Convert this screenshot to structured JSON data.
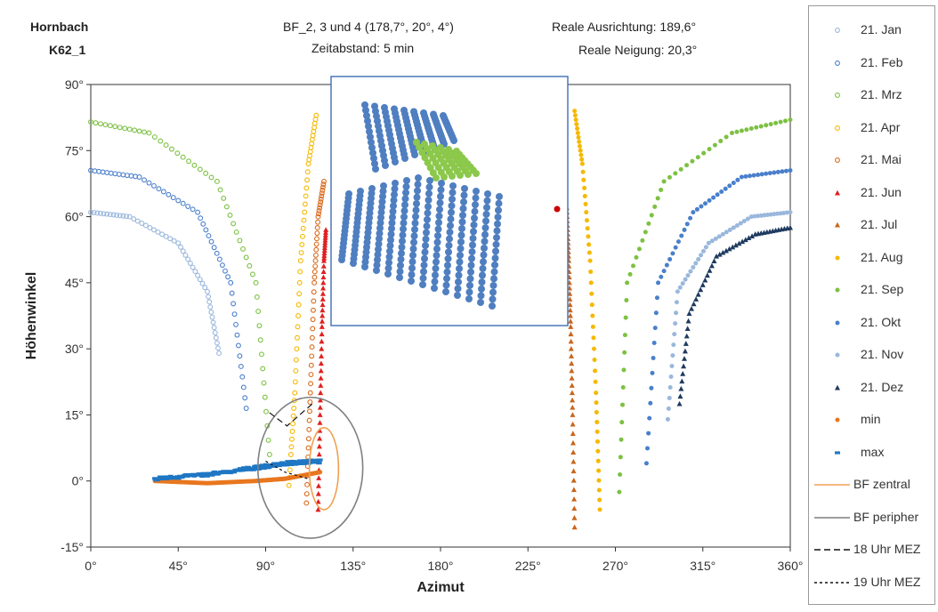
{
  "header": {
    "location": "Hornbach",
    "id": "K62_1",
    "bf_line": "BF_2, 3 und 4 (178,7°, 20°, 4°)",
    "interval_label": "Zeitabstand:",
    "interval_value": "5 min",
    "orientation_label": "Reale Ausrichtung:",
    "orientation_value": "189,6°",
    "tilt_label": "Reale Neigung:",
    "tilt_value": "20,3°"
  },
  "chart_data": {
    "type": "scatter",
    "title": "",
    "xlabel": "Azimut",
    "ylabel": "Höhenwinkel",
    "xlim": [
      0,
      360
    ],
    "ylim": [
      -15,
      90
    ],
    "x_ticks": [
      "0°",
      "45°",
      "90°",
      "135°",
      "180°",
      "225°",
      "270°",
      "315°",
      "360°"
    ],
    "y_ticks": [
      "-15°",
      "0°",
      "15°",
      "30°",
      "45°",
      "60°",
      "75°",
      "90°"
    ],
    "grid": "none",
    "legend": "right",
    "series": [
      {
        "name": "21. Jan",
        "color": "#9ab7dc",
        "marker": "open-circle",
        "x": [
          0,
          20,
          45,
          60,
          66
        ],
        "y": [
          61,
          60,
          54,
          43,
          29
        ]
      },
      {
        "name": "21. Feb",
        "color": "#4a7fcb",
        "marker": "open-circle",
        "x": [
          0,
          25,
          55,
          72,
          80
        ],
        "y": [
          70.5,
          69,
          61,
          45,
          16.5
        ]
      },
      {
        "name": "21. Mrz",
        "color": "#7cc142",
        "marker": "open-circle",
        "x": [
          0,
          30,
          65,
          85,
          92
        ],
        "y": [
          81.5,
          79,
          68,
          45,
          6
        ]
      },
      {
        "name": "21. Apr",
        "color": "#f5b800",
        "marker": "open-circle",
        "x": [
          102,
          105,
          108,
          112,
          116
        ],
        "y": [
          -1,
          20,
          50,
          72,
          83
        ]
      },
      {
        "name": "21. Mai",
        "color": "#d86a1c",
        "marker": "open-circle",
        "x": [
          111,
          113,
          115,
          117,
          120
        ],
        "y": [
          -5,
          20,
          45,
          60,
          68
        ]
      },
      {
        "name": "21. Jun",
        "color": "#e02020",
        "marker": "triangle",
        "x": [
          117,
          118,
          119,
          120,
          121
        ],
        "y": [
          -6.5,
          15,
          35,
          50,
          57
        ]
      },
      {
        "name": "21. Jul",
        "color": "#c9651b",
        "marker": "triangle",
        "x": [
          249,
          248,
          247,
          246,
          245
        ],
        "y": [
          -10.5,
          15,
          35,
          50,
          62
        ]
      },
      {
        "name": "21. Aug",
        "color": "#f5b800",
        "marker": "circle",
        "x": [
          262,
          260,
          257,
          253,
          249
        ],
        "y": [
          -6.5,
          20,
          50,
          72,
          84
        ]
      },
      {
        "name": "21. Sep",
        "color": "#7cc142",
        "marker": "circle",
        "x": [
          272,
          276,
          295,
          330,
          360
        ],
        "y": [
          -2.5,
          45,
          68,
          79,
          82
        ]
      },
      {
        "name": "21. Okt",
        "color": "#4a7fcb",
        "marker": "circle",
        "x": [
          286,
          292,
          310,
          335,
          360
        ],
        "y": [
          4,
          45,
          61,
          69,
          70.5
        ]
      },
      {
        "name": "21. Nov",
        "color": "#9ab7dc",
        "marker": "circle",
        "x": [
          297,
          302,
          318,
          340,
          360
        ],
        "y": [
          14,
          43,
          54,
          60,
          61
        ]
      },
      {
        "name": "21. Dez",
        "color": "#1f3a5f",
        "marker": "triangle",
        "x": [
          303,
          308,
          322,
          342,
          360
        ],
        "y": [
          17.5,
          38,
          51,
          56,
          57.5
        ]
      },
      {
        "name": "min",
        "color": "#e8771e",
        "marker": "circle",
        "x": [
          33,
          60,
          85,
          100,
          118
        ],
        "y": [
          0,
          -0.5,
          0,
          0.5,
          2
        ]
      },
      {
        "name": "max",
        "color": "#1f77c4",
        "marker": "dash",
        "x": [
          33,
          60,
          85,
          100,
          118
        ],
        "y": [
          0.5,
          1.5,
          3,
          4,
          4.5
        ]
      },
      {
        "name": "BF zentral",
        "color": "#f0a050",
        "line": "solid"
      },
      {
        "name": "BF peripher",
        "color": "#7f7f7f",
        "line": "solid"
      },
      {
        "name": "18 Uhr MEZ",
        "color": "#111111",
        "line": "long-dash",
        "x": [
          92,
          101,
          114
        ],
        "y": [
          15.5,
          12.5,
          17.5
        ]
      },
      {
        "name": "19 Uhr MEZ",
        "color": "#111111",
        "line": "short-dash",
        "x": [
          90,
          100,
          112
        ],
        "y": [
          4.5,
          2,
          0.5
        ]
      }
    ],
    "inset": {
      "description_marker_color": "#cc0000",
      "cluster_colors": [
        "#4f7fc0",
        "#8cc84b"
      ]
    }
  }
}
